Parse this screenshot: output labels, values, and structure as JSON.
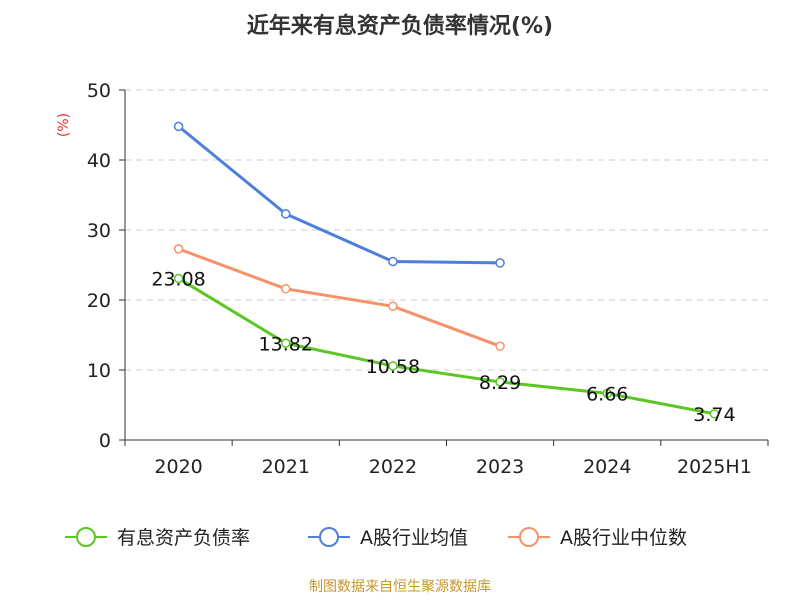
{
  "chart_data": {
    "type": "line",
    "title": "近年来有息资产负债率情况(%)",
    "y_unit_label": "(%)",
    "categories": [
      "2020",
      "2021",
      "2022",
      "2023",
      "2024",
      "2025H1"
    ],
    "ylim": [
      0,
      50
    ],
    "yticks": [
      "0",
      "10",
      "20",
      "30",
      "40",
      "50"
    ],
    "grid": true,
    "legend_position": "bottom",
    "series": [
      {
        "name": "有息资产负债率",
        "color": "#5cc623",
        "values": [
          23.08,
          13.82,
          10.58,
          8.29,
          6.66,
          3.74
        ],
        "labels": [
          "23.08",
          "13.82",
          "10.58",
          "8.29",
          "6.66",
          "3.74"
        ]
      },
      {
        "name": "A股行业均值",
        "color": "#4e7fdc",
        "values": [
          44.8,
          32.3,
          25.5,
          25.3,
          null,
          null
        ]
      },
      {
        "name": "A股行业中位数",
        "color": "#f5926a",
        "values": [
          27.3,
          21.6,
          19.1,
          13.4,
          null,
          null
        ]
      }
    ]
  },
  "source": "制图数据来自恒生聚源数据库"
}
